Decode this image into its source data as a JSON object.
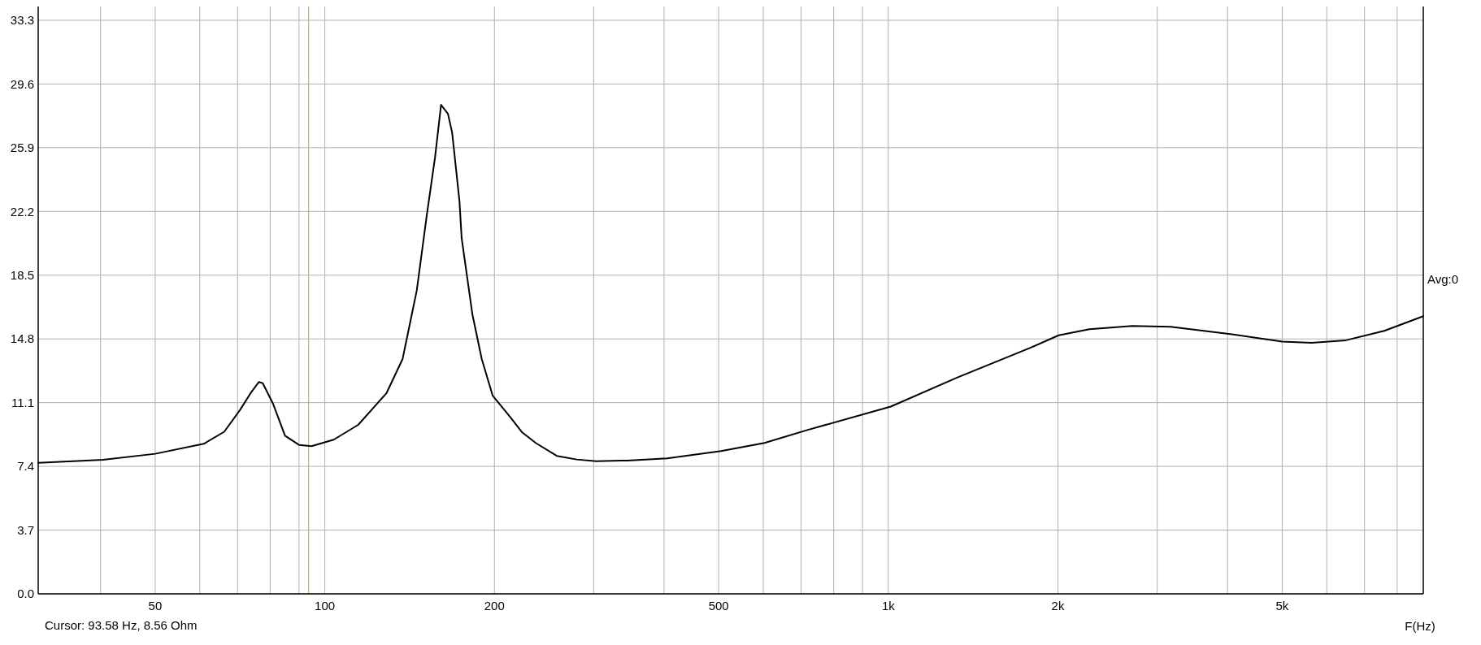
{
  "chart_data": {
    "type": "line",
    "xlabel": "F(Hz)",
    "log": "x",
    "grid": true,
    "marker": "none",
    "line_style": "solid",
    "xlim": [
      31,
      8900
    ],
    "ylim": [
      0,
      34.1
    ],
    "xticks": [
      {
        "value": 40,
        "label": null
      },
      50,
      {
        "value": 60,
        "label": null
      },
      {
        "value": 70,
        "label": null
      },
      {
        "value": 80,
        "label": null
      },
      {
        "value": 90,
        "label": null
      },
      100,
      200,
      {
        "value": 300,
        "label": null
      },
      {
        "value": 400,
        "label": null
      },
      500,
      {
        "value": 600,
        "label": null
      },
      {
        "value": 700,
        "label": null
      },
      {
        "value": 800,
        "label": null
      },
      {
        "value": 900,
        "label": null
      },
      {
        "value": 1000,
        "label": "1k"
      },
      {
        "value": 2000,
        "label": "2k"
      },
      {
        "value": 3000,
        "label": null
      },
      {
        "value": 4000,
        "label": null
      },
      {
        "value": 5000,
        "label": "5k"
      },
      {
        "value": 6000,
        "label": null
      },
      {
        "value": 7000,
        "label": null
      },
      {
        "value": 8000,
        "label": null
      }
    ],
    "yticks": [
      {
        "value": 0,
        "label": "0.0"
      },
      3.7,
      7.4,
      11.1,
      14.8,
      18.5,
      22.2,
      25.9,
      29.6,
      33.3
    ],
    "series": [
      {
        "color": "#000000",
        "x": [
          31,
          40.4,
          50,
          61,
          66.3,
          70.8,
          73.8,
          76.4,
          77.6,
          80.9,
          85,
          90.1,
          94.7,
          103.7,
          114.6,
          128.6,
          137.4,
          145.6,
          151.8,
          156.9,
          160.8,
          165.4,
          168.3,
          173.4,
          174.9,
          182.8,
          189.9,
          198.6,
          214,
          224,
          237,
          258,
          280,
          303,
          344,
          405,
          505,
          603,
          718,
          1010,
          1324,
          1783,
          2006,
          2275,
          2710,
          3168,
          4045,
          5000,
          5637,
          6486,
          7590,
          8900
        ],
        "values": [
          7.61,
          7.78,
          8.13,
          8.71,
          9.41,
          10.7,
          11.64,
          12.3,
          12.23,
          11.05,
          9.18,
          8.64,
          8.57,
          8.95,
          9.81,
          11.64,
          13.63,
          17.61,
          22.06,
          25.34,
          28.39,
          27.87,
          26.75,
          22.76,
          20.66,
          16.21,
          13.63,
          11.5,
          10.21,
          9.37,
          8.75,
          8.01,
          7.8,
          7.7,
          7.74,
          7.87,
          8.29,
          8.76,
          9.51,
          10.87,
          12.55,
          14.27,
          15.01,
          15.36,
          15.55,
          15.5,
          15.08,
          14.64,
          14.57,
          14.72,
          15.27,
          16.12
        ]
      }
    ],
    "ref_lines": [
      {
        "axis": "x",
        "value": 93.58,
        "color": "#d4b82c"
      }
    ],
    "annotations": [
      "Cursor: 93.58 Hz, 8.56 Ohm",
      "Avg:0"
    ]
  }
}
